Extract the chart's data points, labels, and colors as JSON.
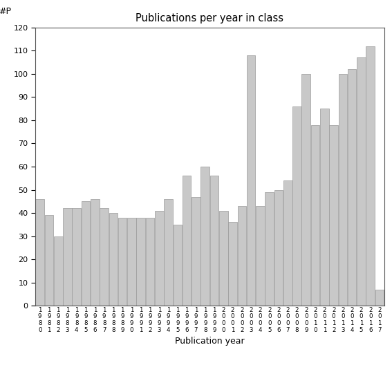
{
  "title": "Publications per year in class",
  "xlabel": "Publication year",
  "ylabel_annotation": "#P",
  "bar_color": "#c8c8c8",
  "edge_color": "#999999",
  "background_color": "#ffffff",
  "ylim": [
    0,
    120
  ],
  "yticks": [
    0,
    10,
    20,
    30,
    40,
    50,
    60,
    70,
    80,
    90,
    100,
    110,
    120
  ],
  "years": [
    "1980",
    "1981",
    "1982",
    "1983",
    "1984",
    "1985",
    "1986",
    "1987",
    "1988",
    "1989",
    "1990",
    "1991",
    "1992",
    "1993",
    "1994",
    "1995",
    "1996",
    "1997",
    "1998",
    "1999",
    "2000",
    "2001",
    "2002",
    "2003",
    "2004",
    "2005",
    "2006",
    "2007",
    "2008",
    "2009",
    "2010",
    "2011",
    "2012",
    "2013",
    "2014",
    "2015",
    "2016",
    "2017"
  ],
  "values": [
    46,
    39,
    30,
    42,
    42,
    45,
    46,
    42,
    40,
    38,
    38,
    38,
    38,
    41,
    46,
    35,
    56,
    47,
    60,
    56,
    41,
    36,
    43,
    108,
    43,
    49,
    50,
    54,
    86,
    100,
    78,
    85,
    78,
    100,
    102,
    107,
    112,
    7
  ]
}
